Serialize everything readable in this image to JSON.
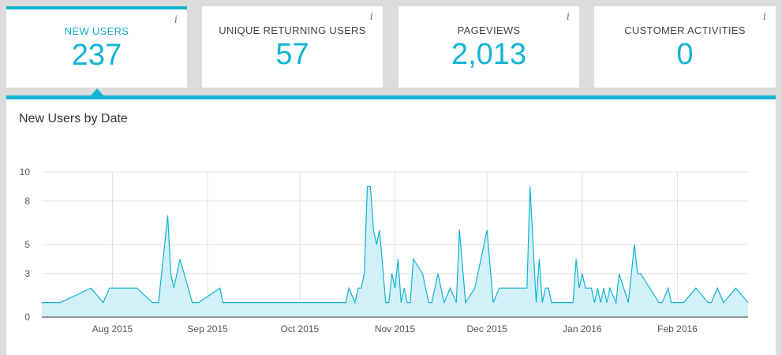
{
  "cards": [
    {
      "label": "NEW USERS",
      "value": "237",
      "info": "i"
    },
    {
      "label": "UNIQUE RETURNING USERS",
      "value": "57",
      "info": "i"
    },
    {
      "label": "PAGEVIEWS",
      "value": "2,013",
      "info": "i"
    },
    {
      "label": "CUSTOMER ACTIVITIES",
      "value": "0",
      "info": "i"
    }
  ],
  "panel": {
    "title": "New Users by Date"
  },
  "colors": {
    "accent": "#11b3d4",
    "area_fill": "#cdeef7"
  },
  "chart_data": {
    "type": "area",
    "ylim": [
      0,
      10
    ],
    "y_ticks": [
      0,
      3,
      5,
      8,
      10
    ],
    "x_ticks": [
      "Aug 2015",
      "Sep 2015",
      "Oct 2015",
      "Nov 2015",
      "Dec 2015",
      "Jan 2016",
      "Feb 2016"
    ],
    "grid": true,
    "x": [
      "2015-07-09",
      "2015-07-15",
      "2015-07-25",
      "2015-07-29",
      "2015-07-31",
      "2015-08-05",
      "2015-08-09",
      "2015-08-14",
      "2015-08-16",
      "2015-08-19",
      "2015-08-20",
      "2015-08-21",
      "2015-08-23",
      "2015-08-27",
      "2015-08-29",
      "2015-09-05",
      "2015-09-06",
      "2015-10-16",
      "2015-10-17",
      "2015-10-19",
      "2015-10-20",
      "2015-10-21",
      "2015-10-22",
      "2015-10-23",
      "2015-10-24",
      "2015-10-25",
      "2015-10-26",
      "2015-10-27",
      "2015-10-29",
      "2015-10-30",
      "2015-10-31",
      "2015-11-01",
      "2015-11-02",
      "2015-11-03",
      "2015-11-04",
      "2015-11-05",
      "2015-11-06",
      "2015-11-07",
      "2015-11-10",
      "2015-11-12",
      "2015-11-13",
      "2015-11-15",
      "2015-11-16",
      "2015-11-17",
      "2015-11-19",
      "2015-11-21",
      "2015-11-22",
      "2015-11-24",
      "2015-11-27",
      "2015-12-01",
      "2015-12-03",
      "2015-12-05",
      "2015-12-13",
      "2015-12-14",
      "2015-12-15",
      "2015-12-17",
      "2015-12-18",
      "2015-12-19",
      "2015-12-20",
      "2015-12-21",
      "2015-12-22",
      "2015-12-25",
      "2015-12-29",
      "2015-12-30",
      "2015-12-31",
      "2016-01-01",
      "2016-01-02",
      "2016-01-03",
      "2016-01-04",
      "2016-01-05",
      "2016-01-06",
      "2016-01-07",
      "2016-01-08",
      "2016-01-09",
      "2016-01-10",
      "2016-01-12",
      "2016-01-13",
      "2016-01-16",
      "2016-01-18",
      "2016-01-19",
      "2016-01-20",
      "2016-01-26",
      "2016-01-27",
      "2016-01-29",
      "2016-01-30",
      "2016-01-31",
      "2016-02-03",
      "2016-02-07",
      "2016-02-11",
      "2016-02-12",
      "2016-02-14",
      "2016-02-16",
      "2016-02-20",
      "2016-02-24"
    ],
    "values": [
      1,
      1,
      2,
      1,
      2,
      2,
      2,
      1,
      1,
      7,
      3,
      2,
      4,
      1,
      1,
      2,
      1,
      1,
      2,
      1,
      2,
      2,
      3,
      9,
      9,
      6,
      5,
      6,
      1,
      1,
      3,
      2,
      4,
      1,
      2,
      1,
      1,
      4,
      3,
      1,
      1,
      3,
      2,
      1,
      2,
      1,
      6,
      1,
      2,
      6,
      1,
      2,
      2,
      2,
      9,
      1,
      4,
      1,
      2,
      2,
      1,
      1,
      1,
      4,
      2,
      3,
      2,
      2,
      2,
      1,
      2,
      1,
      2,
      1,
      2,
      1,
      3,
      1,
      5,
      3,
      3,
      1,
      1,
      2,
      1,
      1,
      1,
      2,
      1,
      1,
      2,
      1,
      2,
      1
    ]
  }
}
